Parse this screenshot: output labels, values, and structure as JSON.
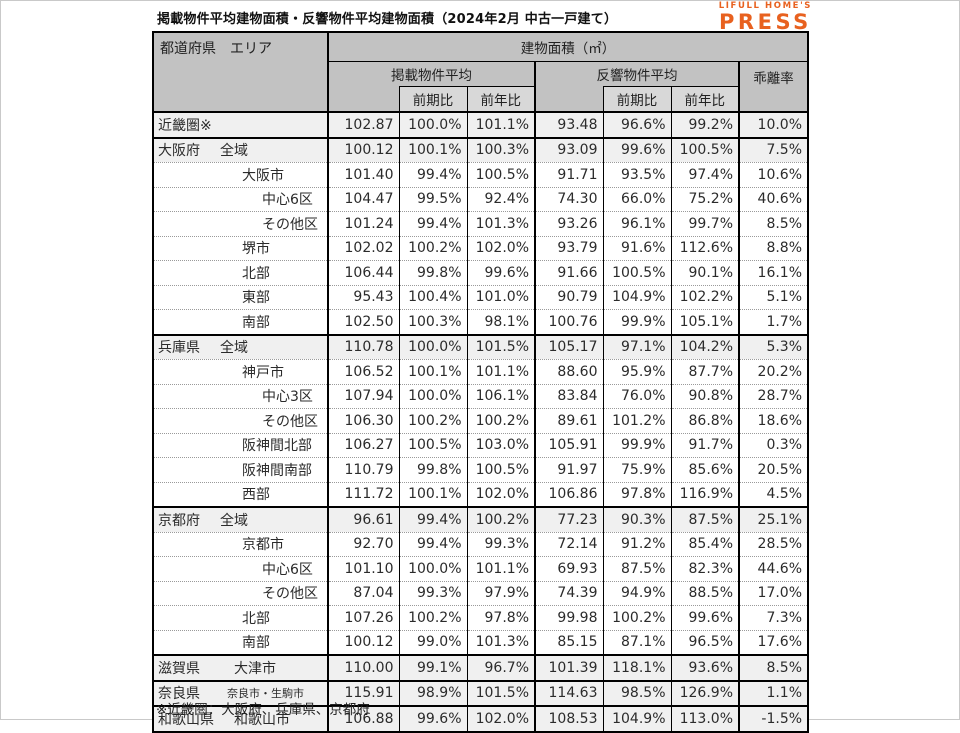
{
  "page": {
    "title": "掲載物件平均建物面積・反響物件平均建物面積（2024年2月 中古一戸建て）",
    "footnote": "※近畿圏：大阪府、兵庫県、京都府",
    "logo": {
      "line1": "LIFULL HOME'S",
      "line2": "PRESS",
      "color": "#E8611F"
    }
  },
  "colors": {
    "header_gray": "#c2c2c2",
    "subheader_gray": "#d8d8d8",
    "shaded_row": "#f0f0f0",
    "brand_orange": "#E8611F"
  },
  "chart_data": {
    "type": "table",
    "title": "掲載物件平均建物面積・反響物件平均建物面積（2024年2月 中古一戸建て）",
    "header": {
      "area_col": "都道府県　エリア",
      "building_area": "建物面積（㎡）",
      "listed": "掲載物件平均",
      "response": "反響物件平均",
      "deviation": "乖離率",
      "prev_period": "前期比",
      "prev_year": "前年比"
    },
    "value_columns": [
      "掲載物件平均",
      "掲載前期比",
      "掲載前年比",
      "反響物件平均",
      "反響前期比",
      "反響前年比",
      "乖離率"
    ],
    "rows": [
      {
        "pref": "近畿圏※",
        "area": "",
        "level": "region",
        "shaded": true,
        "group_start": true,
        "values": [
          "102.87",
          "100.0%",
          "101.1%",
          "93.48",
          "96.6%",
          "99.2%",
          "10.0%"
        ]
      },
      {
        "pref": "大阪府",
        "area": "全域",
        "level": "prefwide",
        "shaded": true,
        "group_start": true,
        "values": [
          "100.12",
          "100.1%",
          "100.3%",
          "93.09",
          "99.6%",
          "100.5%",
          "7.5%"
        ]
      },
      {
        "pref": "",
        "area": "大阪市",
        "level": "city",
        "shaded": false,
        "group_start": false,
        "values": [
          "101.40",
          "99.4%",
          "100.5%",
          "91.71",
          "93.5%",
          "97.4%",
          "10.6%"
        ]
      },
      {
        "pref": "",
        "area": "中心6区",
        "level": "district",
        "shaded": false,
        "group_start": false,
        "values": [
          "104.47",
          "99.5%",
          "92.4%",
          "74.30",
          "66.0%",
          "75.2%",
          "40.6%"
        ]
      },
      {
        "pref": "",
        "area": "その他区",
        "level": "district",
        "shaded": false,
        "group_start": false,
        "values": [
          "101.24",
          "99.4%",
          "101.3%",
          "93.26",
          "96.1%",
          "99.7%",
          "8.5%"
        ]
      },
      {
        "pref": "",
        "area": "堺市",
        "level": "city",
        "shaded": false,
        "group_start": false,
        "values": [
          "102.02",
          "100.2%",
          "102.0%",
          "93.79",
          "91.6%",
          "112.6%",
          "8.8%"
        ]
      },
      {
        "pref": "",
        "area": "北部",
        "level": "city",
        "shaded": false,
        "group_start": false,
        "values": [
          "106.44",
          "99.8%",
          "99.6%",
          "91.66",
          "100.5%",
          "90.1%",
          "16.1%"
        ]
      },
      {
        "pref": "",
        "area": "東部",
        "level": "city",
        "shaded": false,
        "group_start": false,
        "values": [
          "95.43",
          "100.4%",
          "101.0%",
          "90.79",
          "104.9%",
          "102.2%",
          "5.1%"
        ]
      },
      {
        "pref": "",
        "area": "南部",
        "level": "city",
        "shaded": false,
        "group_start": false,
        "values": [
          "102.50",
          "100.3%",
          "98.1%",
          "100.76",
          "99.9%",
          "105.1%",
          "1.7%"
        ]
      },
      {
        "pref": "兵庫県",
        "area": "全域",
        "level": "prefwide",
        "shaded": true,
        "group_start": true,
        "values": [
          "110.78",
          "100.0%",
          "101.5%",
          "105.17",
          "97.1%",
          "104.2%",
          "5.3%"
        ]
      },
      {
        "pref": "",
        "area": "神戸市",
        "level": "city",
        "shaded": false,
        "group_start": false,
        "values": [
          "106.52",
          "100.1%",
          "101.1%",
          "88.60",
          "95.9%",
          "87.7%",
          "20.2%"
        ]
      },
      {
        "pref": "",
        "area": "中心3区",
        "level": "district",
        "shaded": false,
        "group_start": false,
        "values": [
          "107.94",
          "100.0%",
          "106.1%",
          "83.84",
          "76.0%",
          "90.8%",
          "28.7%"
        ]
      },
      {
        "pref": "",
        "area": "その他区",
        "level": "district",
        "shaded": false,
        "group_start": false,
        "values": [
          "106.30",
          "100.2%",
          "100.2%",
          "89.61",
          "101.2%",
          "86.8%",
          "18.6%"
        ]
      },
      {
        "pref": "",
        "area": "阪神間北部",
        "level": "city",
        "shaded": false,
        "group_start": false,
        "values": [
          "106.27",
          "100.5%",
          "103.0%",
          "105.91",
          "99.9%",
          "91.7%",
          "0.3%"
        ]
      },
      {
        "pref": "",
        "area": "阪神間南部",
        "level": "city",
        "shaded": false,
        "group_start": false,
        "values": [
          "110.79",
          "99.8%",
          "100.5%",
          "91.97",
          "75.9%",
          "85.6%",
          "20.5%"
        ]
      },
      {
        "pref": "",
        "area": "西部",
        "level": "city",
        "shaded": false,
        "group_start": false,
        "values": [
          "111.72",
          "100.1%",
          "102.0%",
          "106.86",
          "97.8%",
          "116.9%",
          "4.5%"
        ]
      },
      {
        "pref": "京都府",
        "area": "全域",
        "level": "prefwide",
        "shaded": true,
        "group_start": true,
        "values": [
          "96.61",
          "99.4%",
          "100.2%",
          "77.23",
          "90.3%",
          "87.5%",
          "25.1%"
        ]
      },
      {
        "pref": "",
        "area": "京都市",
        "level": "city",
        "shaded": false,
        "group_start": false,
        "values": [
          "92.70",
          "99.4%",
          "99.3%",
          "72.14",
          "91.2%",
          "85.4%",
          "28.5%"
        ]
      },
      {
        "pref": "",
        "area": "中心6区",
        "level": "district",
        "shaded": false,
        "group_start": false,
        "values": [
          "101.10",
          "100.0%",
          "101.1%",
          "69.93",
          "87.5%",
          "82.3%",
          "44.6%"
        ]
      },
      {
        "pref": "",
        "area": "その他区",
        "level": "district",
        "shaded": false,
        "group_start": false,
        "values": [
          "87.04",
          "99.3%",
          "97.9%",
          "74.39",
          "94.9%",
          "88.5%",
          "17.0%"
        ]
      },
      {
        "pref": "",
        "area": "北部",
        "level": "city",
        "shaded": false,
        "group_start": false,
        "values": [
          "107.26",
          "100.2%",
          "97.8%",
          "99.98",
          "100.2%",
          "99.6%",
          "7.3%"
        ]
      },
      {
        "pref": "",
        "area": "南部",
        "level": "city",
        "shaded": false,
        "group_start": false,
        "values": [
          "100.12",
          "99.0%",
          "101.3%",
          "85.15",
          "87.1%",
          "96.5%",
          "17.6%"
        ]
      },
      {
        "pref": "滋賀県",
        "area": "大津市",
        "level": "single",
        "shaded": true,
        "group_start": true,
        "values": [
          "110.00",
          "99.1%",
          "96.7%",
          "101.39",
          "118.1%",
          "93.6%",
          "8.5%"
        ]
      },
      {
        "pref": "奈良県",
        "area": "奈良市・生駒市",
        "level": "single_small",
        "shaded": true,
        "group_start": true,
        "values": [
          "115.91",
          "98.9%",
          "101.5%",
          "114.63",
          "98.5%",
          "126.9%",
          "1.1%"
        ]
      },
      {
        "pref": "和歌山県",
        "area": "和歌山市",
        "level": "single",
        "shaded": true,
        "group_start": true,
        "values": [
          "106.88",
          "99.6%",
          "102.0%",
          "108.53",
          "104.9%",
          "113.0%",
          "-1.5%"
        ]
      }
    ]
  }
}
